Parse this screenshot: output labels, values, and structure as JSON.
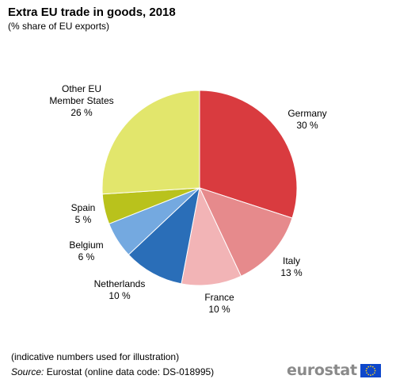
{
  "chart_data": {
    "type": "pie",
    "title": "Extra EU trade in goods, 2018",
    "subtitle": "(% share of EU exports)",
    "unit": "%",
    "start_angle_deg": 0,
    "direction": "clockwise",
    "slices": [
      {
        "name_lines": [
          "Germany"
        ],
        "value": 30,
        "value_label": "30 %",
        "color": "#d93b3f"
      },
      {
        "name_lines": [
          "Italy"
        ],
        "value": 13,
        "value_label": "13 %",
        "color": "#e68a8c"
      },
      {
        "name_lines": [
          "France"
        ],
        "value": 10,
        "value_label": "10 %",
        "color": "#f2b4b6"
      },
      {
        "name_lines": [
          "Netherlands"
        ],
        "value": 10,
        "value_label": "10 %",
        "color": "#2a6eb8"
      },
      {
        "name_lines": [
          "Belgium"
        ],
        "value": 6,
        "value_label": "6 %",
        "color": "#74a9e0"
      },
      {
        "name_lines": [
          "Spain"
        ],
        "value": 5,
        "value_label": "5 %",
        "color": "#b9c21c"
      },
      {
        "name_lines": [
          "Other  EU",
          "Member States"
        ],
        "value": 26,
        "value_label": "26 %",
        "color": "#e2e66c"
      }
    ]
  },
  "footer": {
    "note": "(indicative numbers used for illustration)",
    "source_key": "Source:",
    "source_text": " Eurostat (online data code: DS-018995)"
  },
  "logo": {
    "text": "eurostat",
    "flag_icon": "eu-flag-icon",
    "flag_color": "#0e47cb",
    "star_color": "#ffd617"
  }
}
